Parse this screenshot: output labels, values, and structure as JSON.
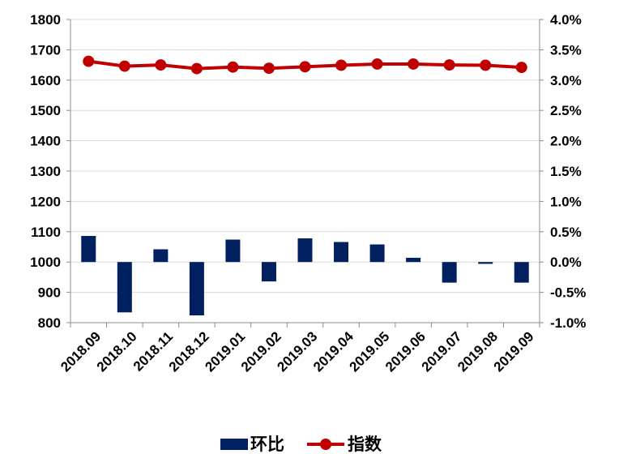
{
  "chart_data": {
    "type": "bar+line",
    "categories": [
      "2018.09",
      "2018.10",
      "2018.11",
      "2018.12",
      "2019.01",
      "2019.02",
      "2019.03",
      "2019.04",
      "2019.05",
      "2019.06",
      "2019.07",
      "2019.08",
      "2019.09"
    ],
    "series": [
      {
        "name": "环比",
        "type": "bar",
        "axis": "right",
        "unit": "%",
        "color": "#002060",
        "values": [
          0.43,
          -0.83,
          0.21,
          -0.88,
          0.37,
          -0.32,
          0.39,
          0.33,
          0.29,
          0.07,
          -0.34,
          -0.03,
          -0.34
        ]
      },
      {
        "name": "指数",
        "type": "line",
        "axis": "left",
        "color": "#c00000",
        "values": [
          1662,
          1646,
          1650,
          1638,
          1643,
          1639,
          1644,
          1649,
          1653,
          1653,
          1650,
          1649,
          1642
        ]
      }
    ],
    "y_left": {
      "min": 800,
      "max": 1800,
      "step": 100,
      "tick_labels": [
        "800",
        "900",
        "1000",
        "1100",
        "1200",
        "1300",
        "1400",
        "1500",
        "1600",
        "1700",
        "1800"
      ]
    },
    "y_right": {
      "min": -1.0,
      "max": 4.0,
      "step": 0.5,
      "tick_labels": [
        "-1.0%",
        "-0.5%",
        "0.0%",
        "0.5%",
        "1.0%",
        "1.5%",
        "2.0%",
        "2.5%",
        "3.0%",
        "3.5%",
        "4.0%"
      ]
    },
    "grid": true,
    "legend": {
      "position": "bottom",
      "items": [
        {
          "label": "环比",
          "marker": "bar",
          "color": "#002060"
        },
        {
          "label": "指数",
          "marker": "line-dot",
          "color": "#c00000"
        }
      ]
    }
  }
}
